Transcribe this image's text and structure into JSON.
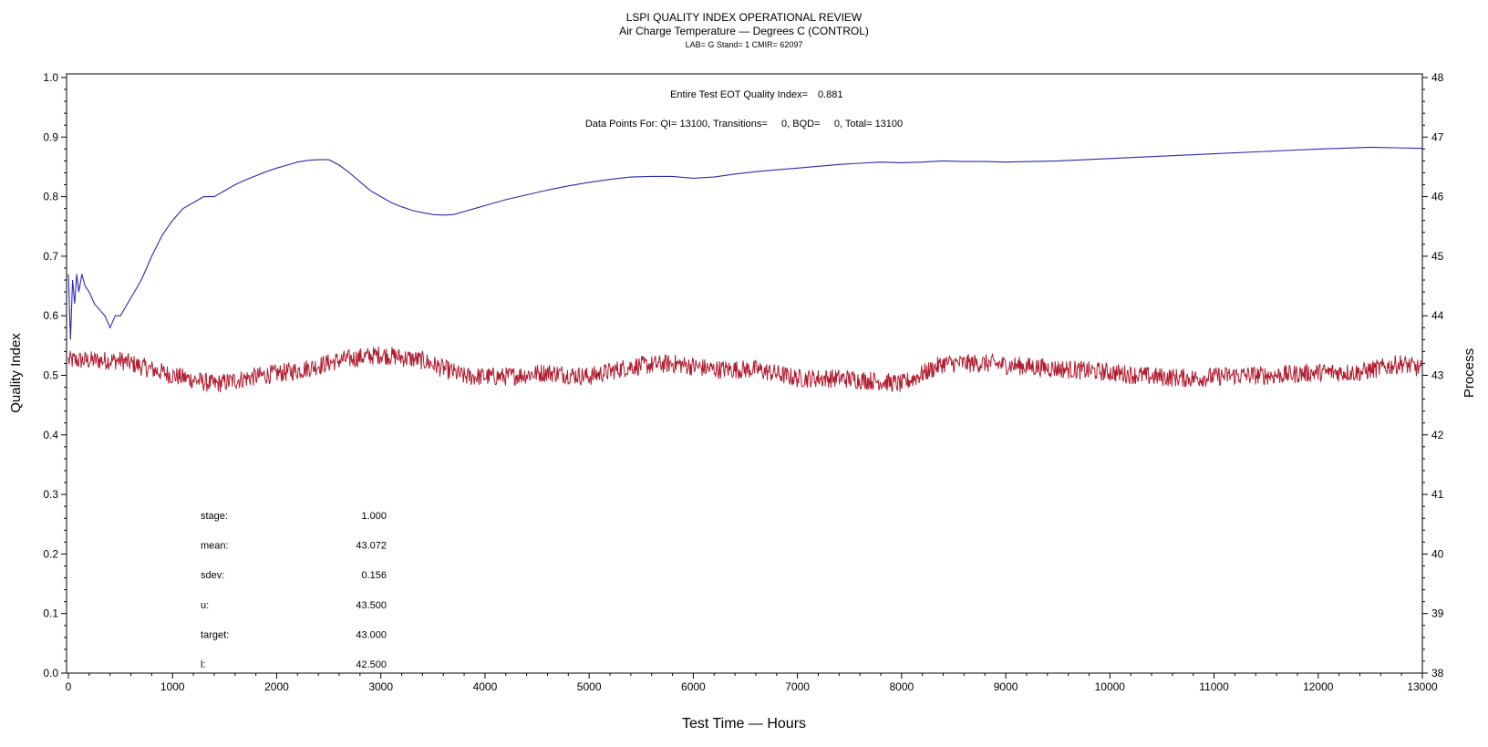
{
  "chart_data": {
    "type": "line",
    "title": "LSPI QUALITY INDEX OPERATIONAL REVIEW",
    "subtitle": "Air Charge Temperature — Degrees C (CONTROL)",
    "subtitle2": "LAB= G Stand= 1 CMIR= 62097",
    "xlabel": "Test Time — Hours",
    "ylabel": "Quality Index",
    "ylabel_right": "Process",
    "xlim": [
      0,
      13000
    ],
    "ylim": [
      0.0,
      1.0
    ],
    "ylim_right": [
      38,
      48
    ],
    "x_ticks": [
      "0",
      "1000",
      "2000",
      "3000",
      "4000",
      "5000",
      "6000",
      "7000",
      "8000",
      "9000",
      "10000",
      "11000",
      "12000",
      "13000"
    ],
    "y_ticks": [
      "0.0",
      "0.1",
      "0.2",
      "0.3",
      "0.4",
      "0.5",
      "0.6",
      "0.7",
      "0.8",
      "0.9",
      "1.0"
    ],
    "y_ticks_right": [
      "38",
      "39",
      "40",
      "41",
      "42",
      "43",
      "44",
      "45",
      "46",
      "47",
      "48"
    ],
    "annotations": {
      "eot_label": "Entire Test EOT Quality Index=",
      "eot_value": "0.881",
      "data_points": "Data Points For: QI= 13100, Transitions=     0, BQD=     0, Total= 13100"
    },
    "stats": [
      {
        "label": "stage:",
        "value": "1.000"
      },
      {
        "label": "mean:",
        "value": "43.072"
      },
      {
        "label": "sdev:",
        "value": "0.156"
      },
      {
        "label": "u:",
        "value": "43.500"
      },
      {
        "label": "target:",
        "value": "43.000"
      },
      {
        "label": "l:",
        "value": "42.500"
      }
    ],
    "series": [
      {
        "axis": "left",
        "color": "#2a2ab0",
        "x": [
          0,
          20,
          40,
          60,
          80,
          100,
          130,
          160,
          200,
          250,
          300,
          350,
          400,
          450,
          500,
          600,
          700,
          800,
          900,
          1000,
          1100,
          1200,
          1300,
          1400,
          1500,
          1600,
          1700,
          1800,
          1900,
          2000,
          2100,
          2200,
          2300,
          2400,
          2500,
          2600,
          2700,
          2800,
          2900,
          3000,
          3100,
          3200,
          3300,
          3400,
          3500,
          3600,
          3700,
          3800,
          3900,
          4000,
          4200,
          4400,
          4600,
          4800,
          5000,
          5200,
          5400,
          5600,
          5800,
          6000,
          6200,
          6400,
          6600,
          6800,
          7000,
          7200,
          7400,
          7600,
          7800,
          8000,
          8200,
          8400,
          8600,
          8800,
          9000,
          9500,
          10000,
          10500,
          11000,
          11500,
          12000,
          12500,
          13000
        ],
        "values": [
          0.67,
          0.56,
          0.66,
          0.62,
          0.67,
          0.64,
          0.67,
          0.65,
          0.64,
          0.62,
          0.61,
          0.6,
          0.58,
          0.6,
          0.6,
          0.63,
          0.66,
          0.7,
          0.735,
          0.76,
          0.78,
          0.79,
          0.8,
          0.8,
          0.81,
          0.82,
          0.828,
          0.835,
          0.842,
          0.848,
          0.853,
          0.858,
          0.861,
          0.862,
          0.862,
          0.853,
          0.84,
          0.825,
          0.81,
          0.8,
          0.79,
          0.783,
          0.777,
          0.773,
          0.77,
          0.769,
          0.77,
          0.775,
          0.78,
          0.785,
          0.795,
          0.803,
          0.811,
          0.818,
          0.824,
          0.829,
          0.833,
          0.834,
          0.834,
          0.831,
          0.833,
          0.838,
          0.842,
          0.845,
          0.848,
          0.851,
          0.854,
          0.856,
          0.858,
          0.857,
          0.858,
          0.86,
          0.859,
          0.859,
          0.858,
          0.86,
          0.864,
          0.868,
          0.872,
          0.876,
          0.88,
          0.883,
          0.881
        ]
      },
      {
        "axis": "right",
        "color": "#b01c30",
        "x": [
          0,
          500,
          1000,
          1400,
          1800,
          2200,
          2600,
          3000,
          3400,
          3800,
          4200,
          4600,
          5000,
          5400,
          5800,
          6200,
          6600,
          7000,
          7400,
          7800,
          8000,
          8400,
          8800,
          9200,
          9600,
          10000,
          10400,
          10800,
          11200,
          11600,
          12000,
          12400,
          12800,
          13000
        ],
        "values": [
          43.25,
          43.25,
          43.0,
          42.85,
          42.98,
          43.08,
          43.25,
          43.35,
          43.25,
          42.98,
          42.98,
          43.05,
          42.98,
          43.15,
          43.2,
          43.1,
          43.1,
          42.95,
          42.95,
          42.9,
          42.85,
          43.2,
          43.2,
          43.15,
          43.1,
          43.05,
          42.98,
          42.95,
          43.0,
          43.0,
          43.05,
          43.05,
          43.2,
          43.1
        ]
      }
    ]
  }
}
